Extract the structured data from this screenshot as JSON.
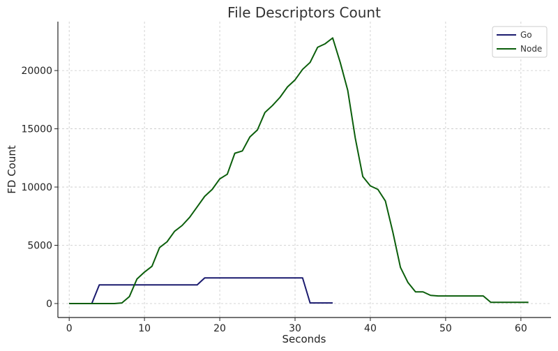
{
  "chart_data": {
    "type": "line",
    "title": "File Descriptors Count",
    "xlabel": "Seconds",
    "ylabel": "FD Count",
    "xlim": [
      -1.5,
      64
    ],
    "ylim": [
      -1200,
      24200
    ],
    "xticks": [
      0,
      10,
      20,
      30,
      40,
      50,
      60
    ],
    "yticks": [
      0,
      5000,
      10000,
      15000,
      20000
    ],
    "grid": true,
    "legend_position": "top-right",
    "colors": {
      "Go": "#1a1a6e",
      "Node": "#0b5e0b"
    },
    "series": [
      {
        "name": "Go",
        "x": [
          0,
          1,
          2,
          3,
          4,
          5,
          6,
          7,
          8,
          9,
          10,
          11,
          12,
          13,
          14,
          15,
          16,
          17,
          18,
          19,
          20,
          21,
          22,
          23,
          24,
          25,
          26,
          27,
          28,
          29,
          30,
          31,
          32,
          33,
          34,
          35
        ],
        "y": [
          0,
          0,
          0,
          0,
          1600,
          1600,
          1600,
          1600,
          1600,
          1600,
          1600,
          1600,
          1600,
          1600,
          1600,
          1600,
          1600,
          1600,
          2200,
          2200,
          2200,
          2200,
          2200,
          2200,
          2200,
          2200,
          2200,
          2200,
          2200,
          2200,
          2200,
          2200,
          50,
          50,
          50,
          50
        ]
      },
      {
        "name": "Node",
        "x": [
          0,
          1,
          2,
          3,
          4,
          5,
          6,
          7,
          8,
          9,
          10,
          11,
          12,
          13,
          14,
          15,
          16,
          17,
          18,
          19,
          20,
          21,
          22,
          23,
          24,
          25,
          26,
          27,
          28,
          29,
          30,
          31,
          32,
          33,
          34,
          35,
          36,
          37,
          38,
          39,
          40,
          41,
          42,
          43,
          44,
          45,
          46,
          47,
          48,
          49,
          50,
          51,
          52,
          53,
          54,
          55,
          56,
          57,
          58,
          59,
          60,
          61
        ],
        "y": [
          0,
          0,
          0,
          0,
          0,
          0,
          0,
          50,
          600,
          2100,
          2700,
          3200,
          4800,
          5300,
          6200,
          6700,
          7400,
          8300,
          9200,
          9800,
          10700,
          11100,
          12900,
          13100,
          14300,
          14900,
          16400,
          17000,
          17700,
          18600,
          19200,
          20100,
          20700,
          22000,
          22300,
          22800,
          20700,
          18300,
          14200,
          10900,
          10100,
          9800,
          8800,
          6100,
          3100,
          1800,
          1000,
          1000,
          700,
          650,
          650,
          650,
          650,
          650,
          650,
          650,
          100,
          100,
          100,
          100,
          100,
          100
        ]
      }
    ]
  }
}
